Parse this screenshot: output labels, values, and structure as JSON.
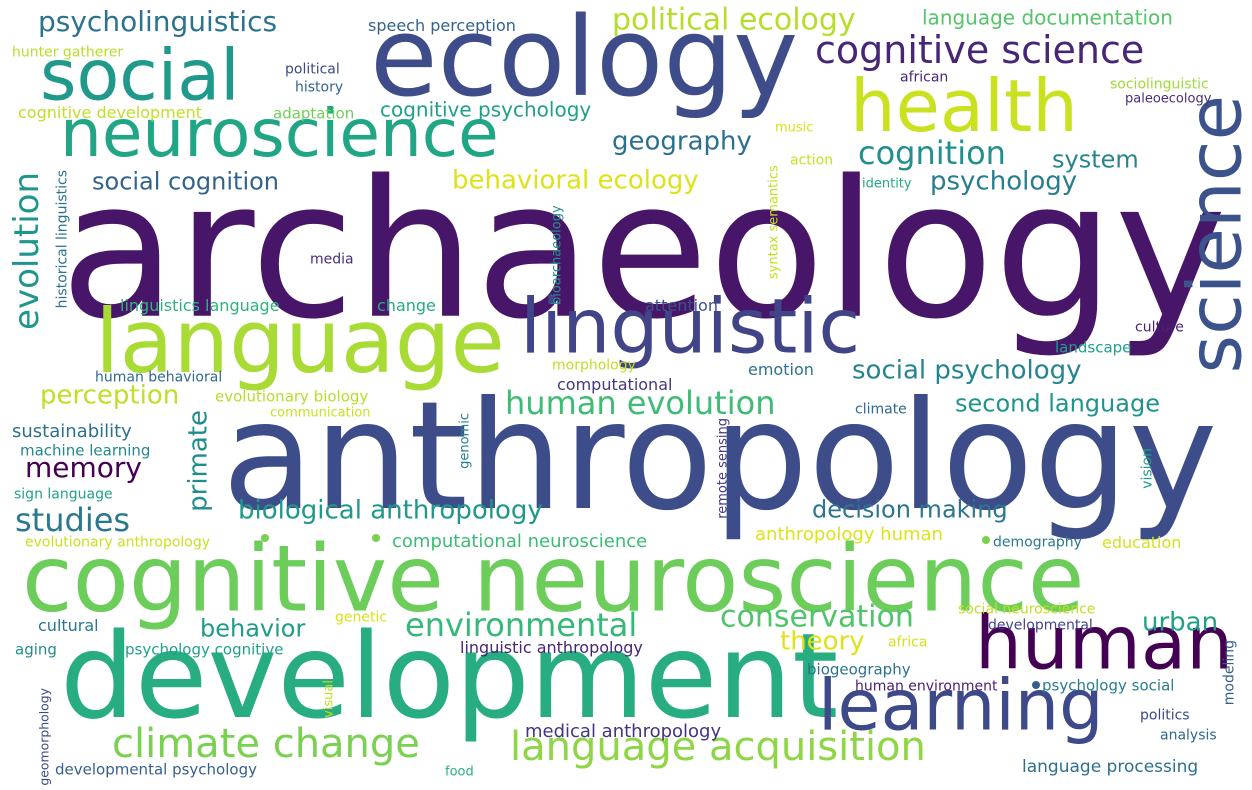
{
  "words": [
    {
      "text": "archaeology",
      "color": "#481668"
    },
    {
      "text": "anthropology",
      "color": "#3d4d8a"
    },
    {
      "text": "cognitive neuroscience",
      "color": "#6ccd5a"
    },
    {
      "text": "development",
      "color": "#27ad81"
    },
    {
      "text": "ecology",
      "color": "#3e4c8a"
    },
    {
      "text": "language",
      "color": "#a8db34"
    },
    {
      "text": "linguistic",
      "color": "#414487"
    },
    {
      "text": "neuroscience",
      "color": "#21a685"
    },
    {
      "text": "social",
      "color": "#1f9a8a"
    },
    {
      "text": "health",
      "color": "#cae11f"
    },
    {
      "text": "science",
      "color": "#3b528b"
    },
    {
      "text": "human",
      "color": "#440154"
    },
    {
      "text": "learning",
      "color": "#3e4989"
    },
    {
      "text": "climate change",
      "color": "#7ad151"
    },
    {
      "text": "language acquisition",
      "color": "#8ed645"
    },
    {
      "text": "psycholinguistics",
      "color": "#2c738e"
    },
    {
      "text": "cognitive science",
      "color": "#482677"
    },
    {
      "text": "political ecology",
      "color": "#b5de2b"
    },
    {
      "text": "evolution",
      "color": "#1f968b"
    },
    {
      "text": "cognition",
      "color": "#218f8d"
    },
    {
      "text": "geography",
      "color": "#2d708e"
    },
    {
      "text": "behavioral ecology",
      "color": "#dde318"
    },
    {
      "text": "social cognition",
      "color": "#33638d"
    },
    {
      "text": "psychology",
      "color": "#287d8e"
    },
    {
      "text": "system",
      "color": "#25858e"
    },
    {
      "text": "human evolution",
      "color": "#3fbc73"
    },
    {
      "text": "social psychology",
      "color": "#25858e"
    },
    {
      "text": "biological anthropology",
      "color": "#1f988b"
    },
    {
      "text": "memory",
      "color": "#440154"
    },
    {
      "text": "studies",
      "color": "#2a788e"
    },
    {
      "text": "primate",
      "color": "#228c8d"
    },
    {
      "text": "perception",
      "color": "#c0df25"
    },
    {
      "text": "environmental",
      "color": "#37b878"
    },
    {
      "text": "conservation",
      "color": "#50c46a"
    },
    {
      "text": "second language",
      "color": "#1f948c"
    },
    {
      "text": "decision making",
      "color": "#2a768e"
    },
    {
      "text": "theory",
      "color": "#dde318"
    },
    {
      "text": "behavior",
      "color": "#1e9c89"
    },
    {
      "text": "urban",
      "color": "#1fa188"
    },
    {
      "text": "language documentation",
      "color": "#54c568"
    },
    {
      "text": "speech perception",
      "color": "#33638d"
    },
    {
      "text": "hunter gatherer",
      "color": "#b8de29"
    },
    {
      "text": "political",
      "color": "#3e4a89"
    },
    {
      "text": "history",
      "color": "#33638d"
    },
    {
      "text": "african",
      "color": "#482878"
    },
    {
      "text": "sociolinguistic",
      "color": "#a2da37"
    },
    {
      "text": "paleoecology",
      "color": "#472d7b"
    },
    {
      "text": "cognitive development",
      "color": "#c0df25"
    },
    {
      "text": "adaptation",
      "color": "#73d056"
    },
    {
      "text": "cognitive psychology",
      "color": "#1fa088"
    },
    {
      "text": "music",
      "color": "#d8e219"
    },
    {
      "text": "action",
      "color": "#c8e020"
    },
    {
      "text": "identity",
      "color": "#22a884"
    },
    {
      "text": "historical linguistics",
      "color": "#2d708e"
    },
    {
      "text": "media",
      "color": "#472d7b"
    },
    {
      "text": "bioarchaeology",
      "color": "#21918c"
    },
    {
      "text": "syntax semantics",
      "color": "#c2df23"
    },
    {
      "text": "linguistics language",
      "color": "#2eb37c"
    },
    {
      "text": "change",
      "color": "#25ab82"
    },
    {
      "text": "attention",
      "color": "#3b528b"
    },
    {
      "text": "culture",
      "color": "#482475"
    },
    {
      "text": "landscape",
      "color": "#1fa088"
    },
    {
      "text": "morphology",
      "color": "#c2df23"
    },
    {
      "text": "emotion",
      "color": "#2c728e"
    },
    {
      "text": "computational",
      "color": "#453781"
    },
    {
      "text": "human behavioral",
      "color": "#31688e"
    },
    {
      "text": "evolutionary biology",
      "color": "#b5de2b"
    },
    {
      "text": "communication",
      "color": "#cae11f"
    },
    {
      "text": "climate",
      "color": "#31688e"
    },
    {
      "text": "sustainability",
      "color": "#2d708e"
    },
    {
      "text": "machine learning",
      "color": "#23888e"
    },
    {
      "text": "genomic",
      "color": "#26828e"
    },
    {
      "text": "sign language",
      "color": "#20a386"
    },
    {
      "text": "remote sensing",
      "color": "#443983"
    },
    {
      "text": "vision",
      "color": "#1f9e89"
    },
    {
      "text": "evolutionary anthropology",
      "color": "#cae11f"
    },
    {
      "text": "computational neuroscience",
      "color": "#3bbb75"
    },
    {
      "text": "anthropology human",
      "color": "#dde318"
    },
    {
      "text": "demography",
      "color": "#2a788e"
    },
    {
      "text": "education",
      "color": "#d2e21b"
    },
    {
      "text": "social neuroscience",
      "color": "#c2df23"
    },
    {
      "text": "genetic",
      "color": "#d8e219"
    },
    {
      "text": "africa",
      "color": "#d2e21b"
    },
    {
      "text": "cultural",
      "color": "#2a768e"
    },
    {
      "text": "developmental",
      "color": "#414487"
    },
    {
      "text": "aging",
      "color": "#228c8d"
    },
    {
      "text": "psychology cognitive",
      "color": "#1fa188"
    },
    {
      "text": "linguistic anthropology",
      "color": "#482475"
    },
    {
      "text": "biogeography",
      "color": "#2c728e"
    },
    {
      "text": "modeling",
      "color": "#355f8d"
    },
    {
      "text": "human environment",
      "color": "#481f70"
    },
    {
      "text": "psychology social",
      "color": "#287d8e"
    },
    {
      "text": "geomorphology",
      "color": "#3e4a89"
    },
    {
      "text": "visual",
      "color": "#c2df23"
    },
    {
      "text": "medical anthropology",
      "color": "#46337f"
    },
    {
      "text": "politics",
      "color": "#3e4989"
    },
    {
      "text": "analysis",
      "color": "#31688e"
    },
    {
      "text": "developmental psychology",
      "color": "#355f8d"
    },
    {
      "text": "food",
      "color": "#29af7f"
    },
    {
      "text": "language processing",
      "color": "#2d708e"
    }
  ]
}
